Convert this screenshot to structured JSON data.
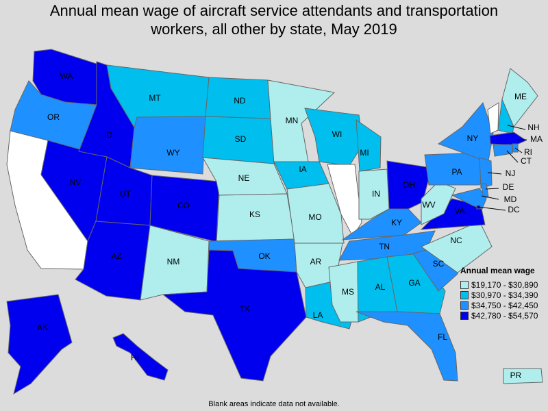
{
  "title_line1": "Annual mean wage of aircraft service attendants and transportation",
  "title_line2": "workers, all other by state, May 2019",
  "legend": {
    "title": "Annual mean wage",
    "bins": [
      {
        "label": "$19,170 - $30,890",
        "color": "#b0eeee"
      },
      {
        "label": "$30,970 - $34,390",
        "color": "#00bfef"
      },
      {
        "label": "$34,750 - $42,450",
        "color": "#1e90ff"
      },
      {
        "label": "$42,780 - $54,570",
        "color": "#0000ee"
      }
    ]
  },
  "no_data_color": "#ffffff",
  "footnote": "Blank areas indicate data not available.",
  "states": {
    "WA": 3,
    "OR": 2,
    "CA": null,
    "NV": 3,
    "ID": 3,
    "MT": 1,
    "WY": 2,
    "UT": 3,
    "AZ": 3,
    "CO": 3,
    "NM": 0,
    "ND": 1,
    "SD": 1,
    "NE": 0,
    "KS": 0,
    "OK": 2,
    "TX": 3,
    "MN": 0,
    "IA": 1,
    "MO": 0,
    "AR": 0,
    "LA": 1,
    "WI": 1,
    "IL": null,
    "MI": 1,
    "IN": 0,
    "OH": 3,
    "KY": 2,
    "TN": 2,
    "MS": 0,
    "AL": 1,
    "GA": 1,
    "FL": 2,
    "SC": 2,
    "NC": 0,
    "VA": 3,
    "WV": 0,
    "PA": 2,
    "NY": 2,
    "VT": null,
    "NH": 1,
    "ME": 0,
    "MA": 3,
    "RI": 2,
    "CT": 2,
    "NJ": 2,
    "DE": 2,
    "MD": 2,
    "DC": 3,
    "AK": 3,
    "HI": 3,
    "PR": 0
  }
}
